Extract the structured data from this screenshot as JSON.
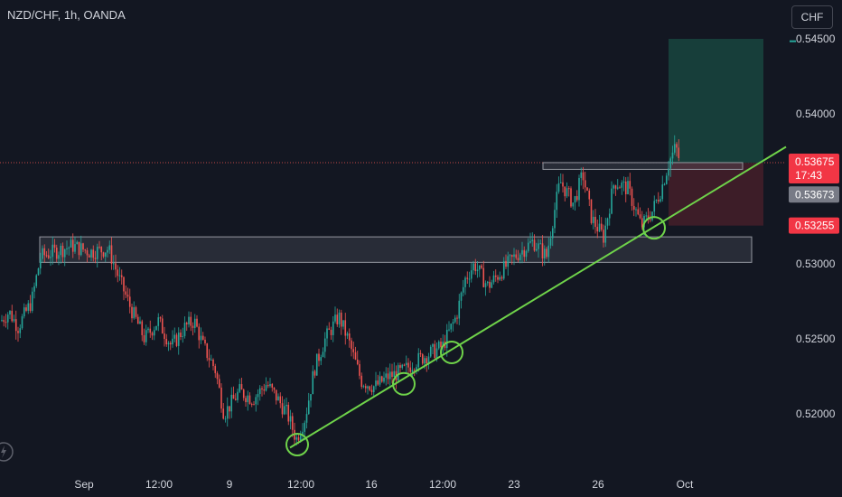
{
  "header": {
    "symbol": "NZD/CHF, 1h, OANDA",
    "currency_button": "CHF"
  },
  "chart_data": {
    "type": "candlestick",
    "symbol": "NZD/CHF",
    "interval": "1h",
    "source": "OANDA",
    "y_ticks": [
      "0.54500",
      "0.54000",
      "0.53000",
      "0.52500",
      "0.52000"
    ],
    "x_ticks": [
      "Sep",
      "12:00",
      "9",
      "12:00",
      "16",
      "12:00",
      "23",
      "26",
      "Oct"
    ],
    "price_labels": {
      "take_profit": "0.54500",
      "current": "0.53675",
      "countdown": "17:43",
      "entry": "0.53673",
      "stop_loss": "0.53255"
    },
    "close_path": [
      [
        0.5262,
        1
      ],
      [
        0.5268,
        10
      ],
      [
        0.5258,
        20
      ],
      [
        0.5275,
        35
      ],
      [
        0.5305,
        45
      ],
      [
        0.5308,
        60
      ],
      [
        0.5312,
        80
      ],
      [
        0.5308,
        100
      ],
      [
        0.531,
        120
      ],
      [
        0.529,
        132
      ],
      [
        0.527,
        145
      ],
      [
        0.525,
        160
      ],
      [
        0.5262,
        175
      ],
      [
        0.5245,
        190
      ],
      [
        0.5258,
        205
      ],
      [
        0.5262,
        215
      ],
      [
        0.5245,
        225
      ],
      [
        0.523,
        238
      ],
      [
        0.52,
        248
      ],
      [
        0.5215,
        265
      ],
      [
        0.521,
        280
      ],
      [
        0.522,
        295
      ],
      [
        0.5212,
        305
      ],
      [
        0.52,
        318
      ],
      [
        0.5183,
        328
      ],
      [
        0.5198,
        338
      ],
      [
        0.523,
        348
      ],
      [
        0.525,
        360
      ],
      [
        0.5265,
        375
      ],
      [
        0.525,
        385
      ],
      [
        0.5222,
        400
      ],
      [
        0.5218,
        415
      ],
      [
        0.5225,
        430
      ],
      [
        0.5228,
        445
      ],
      [
        0.5235,
        460
      ],
      [
        0.524,
        475
      ],
      [
        0.5245,
        490
      ],
      [
        0.5265,
        505
      ],
      [
        0.529,
        515
      ],
      [
        0.53,
        525
      ],
      [
        0.5285,
        540
      ],
      [
        0.5295,
        555
      ],
      [
        0.5305,
        570
      ],
      [
        0.5315,
        590
      ],
      [
        0.5305,
        605
      ],
      [
        0.533,
        612
      ],
      [
        0.5355,
        620
      ],
      [
        0.534,
        635
      ],
      [
        0.536,
        645
      ],
      [
        0.533,
        655
      ],
      [
        0.5318,
        668
      ],
      [
        0.5355,
        680
      ],
      [
        0.535,
        695
      ],
      [
        0.5325,
        710
      ],
      [
        0.5335,
        722
      ],
      [
        0.535,
        732
      ],
      [
        0.5367,
        740
      ],
      [
        0.5378,
        748
      ],
      [
        0.5367,
        753
      ]
    ],
    "resistance_zones": [
      {
        "top": 0.5318,
        "bottom": 0.5301,
        "x_start": 44,
        "x_end": 832
      },
      {
        "top": 0.53675,
        "bottom": 0.5363,
        "x_start": 601,
        "x_end": 822
      }
    ],
    "trendline": {
      "x1": 321,
      "y1": 0.51775,
      "x2": 870,
      "y2": 0.5378
    },
    "touch_circles": [
      {
        "x": 329,
        "y": 0.51795
      },
      {
        "x": 447,
        "y": 0.522
      },
      {
        "x": 500,
        "y": 0.5241
      },
      {
        "x": 724,
        "y": 0.5324
      }
    ],
    "position": {
      "type": "long",
      "entry": 0.53673,
      "target": 0.545,
      "stop": 0.53255,
      "x_start": 740,
      "x_end": 845
    },
    "colors": {
      "up": "#26a69a",
      "down": "#ef5350",
      "trendline": "#6fd34a",
      "background": "#131722",
      "profit_zone": "#173e3a",
      "loss_zone": "#3d1d28"
    }
  }
}
